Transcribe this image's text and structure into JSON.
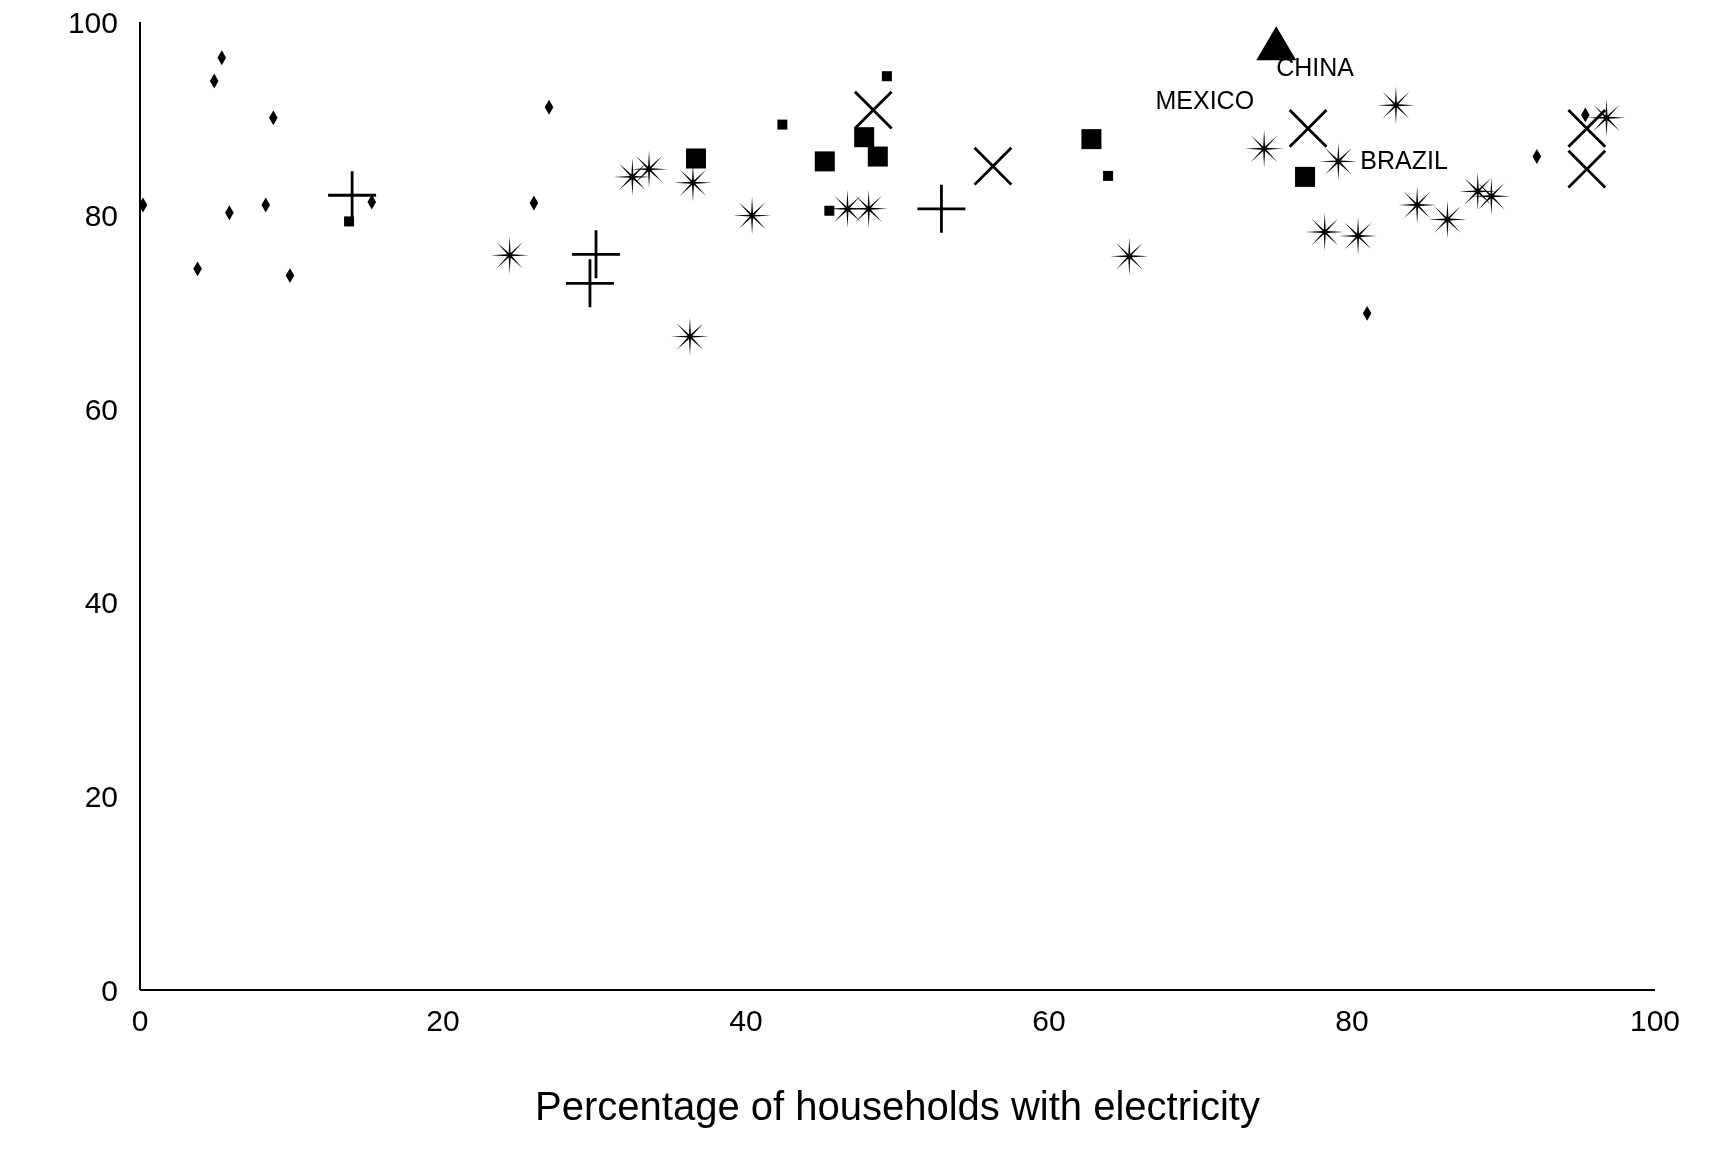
{
  "chart_data": {
    "type": "scatter",
    "xlabel": "Percentage of households with electricity",
    "xlim": [
      0,
      100
    ],
    "xticks": [
      0,
      20,
      40,
      60,
      80,
      100
    ],
    "ylim": [
      0,
      100
    ],
    "yticks": [
      0,
      20,
      40,
      60,
      80,
      100
    ],
    "grid": false,
    "legend": false,
    "series": [
      {
        "color": "#000000",
        "marker": "diamond",
        "x": [
          0.2,
          3.8,
          4.9,
          5.4,
          5.9,
          8.3,
          8.8,
          9.9,
          15.3,
          26.0,
          27.0,
          81.0,
          92.2,
          95.4
        ],
        "values": [
          81.1,
          74.5,
          93.9,
          96.3,
          80.3,
          81.1,
          90.1,
          73.8,
          81.4,
          81.3,
          91.2,
          69.9,
          86.1,
          90.4
        ]
      },
      {
        "color": "#000000",
        "marker": "cross",
        "x": [
          14.0,
          30.1,
          29.7,
          52.9
        ],
        "values": [
          82.1,
          76.0,
          73.0,
          80.7
        ]
      },
      {
        "color": "#000000",
        "marker": "square",
        "x": [
          13.8,
          42.4,
          49.3,
          45.5,
          63.9
        ],
        "values": [
          79.4,
          89.4,
          94.4,
          80.5,
          84.1
        ]
      },
      {
        "color": "#000000",
        "marker": "square",
        "x": [
          36.7,
          45.2,
          47.8,
          48.7,
          62.8,
          76.9
        ],
        "values": [
          85.9,
          85.6,
          88.1,
          86.1,
          87.9,
          84.0
        ]
      },
      {
        "color": "#000000",
        "marker": "cross",
        "x": [
          48.4,
          56.3,
          77.1,
          95.5,
          95.5
        ],
        "values": [
          90.9,
          85.1,
          89.0,
          84.8,
          89.0
        ]
      },
      {
        "color": "#000000",
        "marker": "star",
        "x": [
          24.4,
          32.5,
          33.6,
          36.5,
          36.3,
          40.4,
          46.7,
          48.1,
          65.3,
          74.2,
          79.1,
          78.2,
          80.4,
          82.9,
          84.3,
          86.3,
          88.3,
          89.2,
          96.8
        ],
        "values": [
          75.9,
          84.0,
          84.8,
          83.4,
          67.5,
          80.0,
          80.7,
          80.7,
          75.8,
          86.9,
          85.6,
          78.3,
          77.9,
          91.4,
          81.1,
          79.6,
          82.5,
          82.0,
          90.1
        ]
      },
      {
        "color": "#000000",
        "marker": "triangle",
        "x": [
          75.0
        ],
        "values": [
          97.5
        ]
      }
    ],
    "annotations": [
      {
        "text": "CHINA",
        "x": 75.0,
        "y": 97.5
      },
      {
        "text": "MEXICO",
        "x": 74.2,
        "y": 86.9
      },
      {
        "text": "BRAZIL",
        "x": 79.1,
        "y": 85.6
      }
    ]
  }
}
